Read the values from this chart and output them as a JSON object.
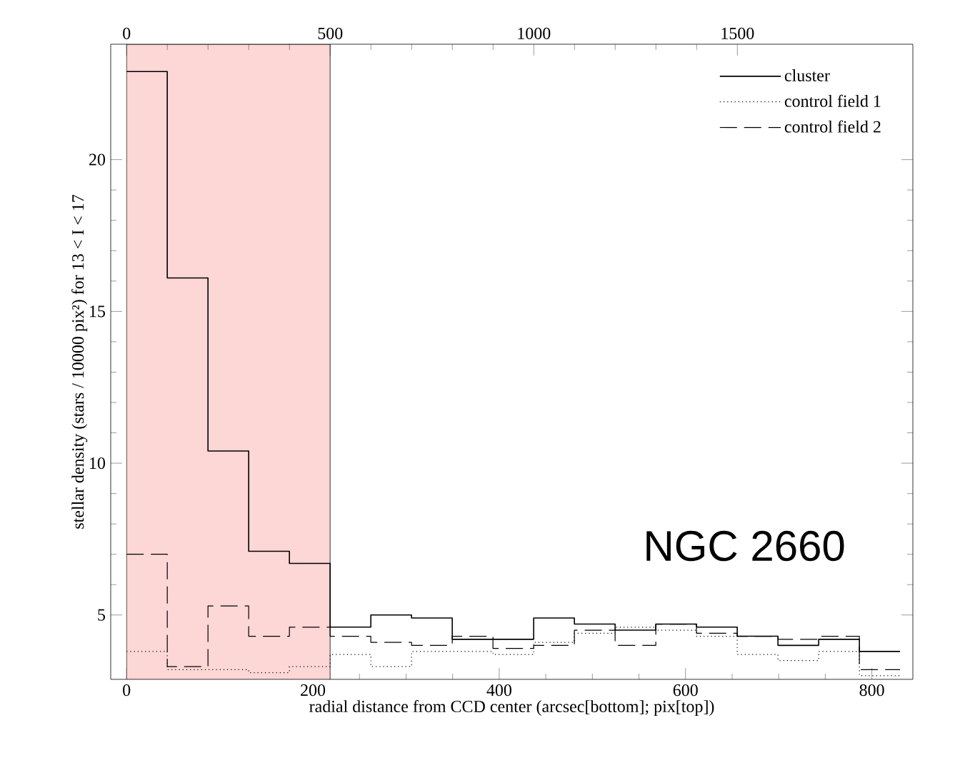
{
  "chart_data": {
    "type": "step",
    "xlabel": "radial distance from CCD center (arcsec[bottom]; pix[top])",
    "ylabel": "stellar density (stars / 10000 pix²) for 13 < I < 17",
    "x": [
      0,
      43.7,
      87.4,
      131.1,
      174.8,
      218.5,
      262.2,
      305.9,
      349.6,
      393.3,
      437,
      480.7,
      524.4,
      568.1,
      611.8,
      655.5,
      699.2,
      742.9,
      786.6,
      830.3
    ],
    "series": [
      {
        "name": "cluster",
        "color": "#000000",
        "line_style": "solid",
        "values": [
          22.9,
          16.1,
          10.4,
          7.1,
          6.7,
          4.6,
          5.0,
          4.9,
          4.2,
          4.2,
          4.9,
          4.7,
          4.5,
          4.7,
          4.6,
          4.3,
          4.0,
          4.2,
          3.8,
          3.8
        ]
      },
      {
        "name": "control field 1",
        "color": "#000000",
        "line_style": "dotted",
        "values": [
          3.8,
          3.2,
          3.2,
          3.1,
          3.3,
          3.7,
          3.3,
          3.8,
          3.8,
          3.7,
          4.1,
          4.4,
          4.6,
          4.5,
          4.3,
          3.7,
          3.5,
          3.8,
          3.0,
          3.0
        ]
      },
      {
        "name": "control field 2",
        "color": "#000000",
        "line_style": "dashed",
        "values": [
          7.0,
          3.3,
          5.3,
          4.3,
          4.6,
          4.3,
          4.1,
          4.0,
          4.3,
          3.9,
          4.0,
          4.5,
          4.0,
          4.7,
          4.4,
          4.3,
          4.2,
          4.3,
          3.2,
          3.2
        ]
      }
    ],
    "xlim": [
      -17,
      844
    ],
    "xticks": [
      0,
      200,
      400,
      600,
      800
    ],
    "x2lim": [
      -39,
      1931
    ],
    "x2ticks": [
      0,
      500,
      1000,
      1500
    ],
    "ylim": [
      2.88,
      23.8
    ],
    "yticks": [
      5,
      10,
      15,
      20
    ],
    "bands": [
      {
        "axis": "x",
        "from": 0,
        "to": 218.5,
        "color": "#fdd6d6"
      }
    ],
    "annotations": [
      "NGC 2660"
    ],
    "legend": "top right"
  }
}
